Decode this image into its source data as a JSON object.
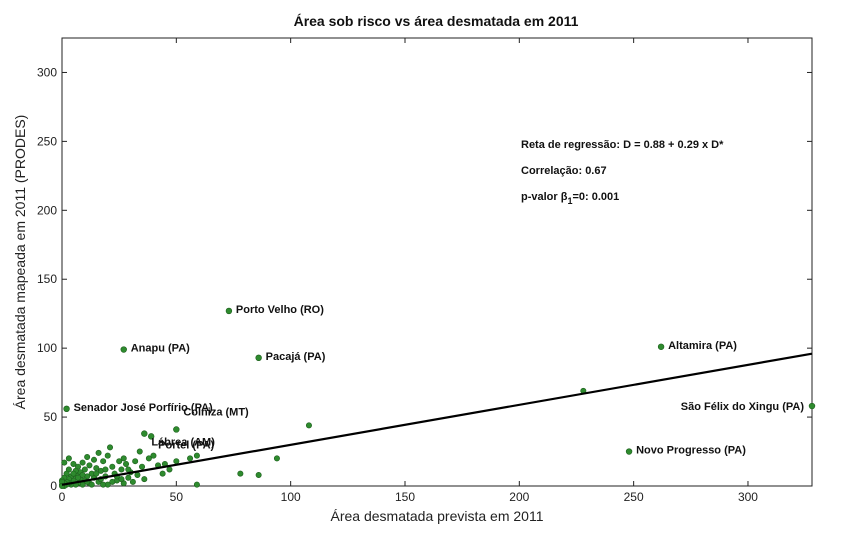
{
  "chart_data": {
    "type": "scatter",
    "title": "Área sob risco vs área desmatada em 2011",
    "xlabel": "Área desmatada prevista em 2011",
    "ylabel": "Área desmatada mapeada em 2011 (PRODES)",
    "xlim": [
      0,
      328
    ],
    "ylim": [
      0,
      325
    ],
    "xticks": [
      0,
      50,
      100,
      150,
      200,
      250,
      300
    ],
    "yticks": [
      0,
      50,
      100,
      150,
      200,
      250,
      300
    ],
    "grid": false,
    "point_color": "#2e8b2e",
    "line_color": "#000000",
    "regression": {
      "intercept": 0.88,
      "slope": 0.29
    },
    "stats": {
      "line1": "Reta de regressão: D = 0.88 + 0.29 x D*",
      "line2": "Correlação:  0.67",
      "line3_prefix": "p-valor β",
      "line3_sub": "1",
      "line3_suffix": "=0:  0.001"
    },
    "labeled_points": [
      {
        "label": "Porto Velho (RO)",
        "x": 73,
        "y": 127
      },
      {
        "label": "Anapu (PA)",
        "x": 27,
        "y": 99
      },
      {
        "label": "Pacajá (PA)",
        "x": 86,
        "y": 93
      },
      {
        "label": "Altamira (PA)",
        "x": 262,
        "y": 101
      },
      {
        "label": "Senador José Porfírio (PA)",
        "x": 2,
        "y": 56
      },
      {
        "label": "Lábrea (AM)",
        "x": 36,
        "y": 38
      },
      {
        "label": "Colniza (MT)",
        "x": 50,
        "y": 41
      },
      {
        "label": "Portel (PA)",
        "x": 39,
        "y": 36
      },
      {
        "label": "São Félix do Xingu (PA)",
        "x": 328,
        "y": 58
      },
      {
        "label": "Novo Progresso (PA)",
        "x": 248,
        "y": 25
      }
    ],
    "points": [
      [
        228,
        69
      ],
      [
        108,
        44
      ],
      [
        94,
        20
      ],
      [
        86,
        8
      ],
      [
        78,
        9
      ],
      [
        59,
        1
      ],
      [
        59,
        22
      ],
      [
        56,
        20
      ],
      [
        50,
        18
      ],
      [
        47,
        12
      ],
      [
        45,
        16
      ],
      [
        42,
        15
      ],
      [
        40,
        22
      ],
      [
        38,
        20
      ],
      [
        35,
        14
      ],
      [
        34,
        25
      ],
      [
        33,
        8
      ],
      [
        31,
        3
      ],
      [
        30,
        10
      ],
      [
        29,
        6
      ],
      [
        28,
        16
      ],
      [
        27,
        2
      ],
      [
        26,
        12
      ],
      [
        25,
        18
      ],
      [
        24,
        4
      ],
      [
        23,
        9
      ],
      [
        22,
        14
      ],
      [
        21,
        28
      ],
      [
        20,
        22
      ],
      [
        20,
        1
      ],
      [
        19,
        7
      ],
      [
        18,
        18
      ],
      [
        17,
        11
      ],
      [
        16,
        24
      ],
      [
        16,
        3
      ],
      [
        15,
        13
      ],
      [
        14,
        6
      ],
      [
        14,
        19
      ],
      [
        13,
        9
      ],
      [
        12,
        15
      ],
      [
        12,
        2
      ],
      [
        11,
        21
      ],
      [
        11,
        7
      ],
      [
        10,
        12
      ],
      [
        10,
        4
      ],
      [
        9,
        17
      ],
      [
        9,
        1
      ],
      [
        8,
        10
      ],
      [
        8,
        5
      ],
      [
        7,
        14
      ],
      [
        7,
        2
      ],
      [
        6,
        8
      ],
      [
        6,
        11
      ],
      [
        5,
        4
      ],
      [
        5,
        16
      ],
      [
        4,
        7
      ],
      [
        4,
        1
      ],
      [
        3,
        12
      ],
      [
        3,
        5
      ],
      [
        3,
        2
      ],
      [
        2,
        9
      ],
      [
        2,
        3
      ],
      [
        2,
        1
      ],
      [
        1,
        6
      ],
      [
        1,
        2
      ],
      [
        1,
        0
      ],
      [
        0,
        4
      ],
      [
        0,
        1
      ],
      [
        0,
        3
      ],
      [
        0,
        0
      ],
      [
        6,
        1
      ],
      [
        9,
        8
      ],
      [
        13,
        1
      ],
      [
        17,
        5
      ],
      [
        22,
        3
      ],
      [
        26,
        5
      ],
      [
        29,
        12
      ],
      [
        32,
        18
      ],
      [
        36,
        5
      ],
      [
        44,
        9
      ],
      [
        1,
        17
      ],
      [
        3,
        20
      ],
      [
        5,
        9
      ],
      [
        7,
        6
      ],
      [
        11,
        3
      ],
      [
        15,
        9
      ],
      [
        19,
        12
      ],
      [
        24,
        7
      ],
      [
        27,
        20
      ],
      [
        18,
        1
      ]
    ]
  }
}
